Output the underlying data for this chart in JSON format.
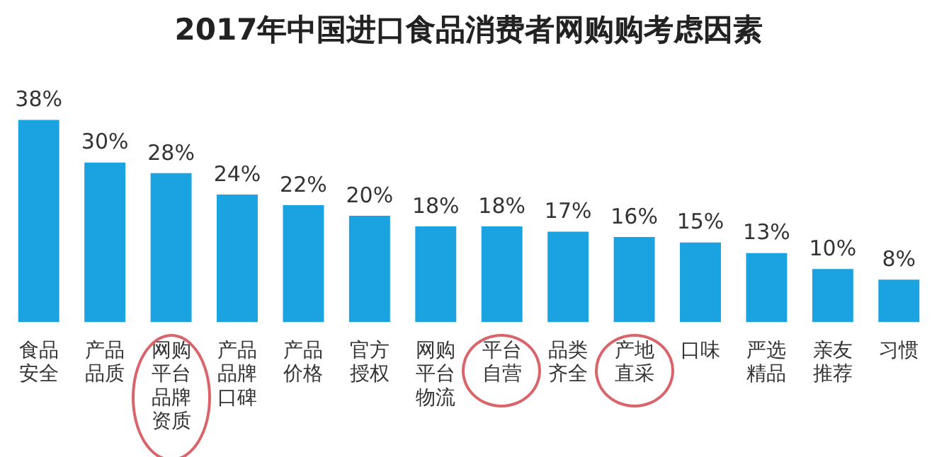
{
  "chart_data": {
    "type": "bar",
    "title": "2017年中国进口食品消费者网购购考虑因素",
    "categories": [
      "食品安全",
      "产品品质",
      "网购平台品牌资质",
      "产品品牌口碑",
      "产品价格",
      "官方授权",
      "网购平台物流",
      "平台自营",
      "品类齐全",
      "产地直采",
      "口味",
      "严选精品",
      "亲友推荐",
      "习惯"
    ],
    "values": [
      38,
      30,
      28,
      24,
      22,
      20,
      18,
      18,
      17,
      16,
      15,
      13,
      10,
      8
    ],
    "value_labels": [
      "38%",
      "30%",
      "28%",
      "24%",
      "22%",
      "20%",
      "18%",
      "18%",
      "17%",
      "16%",
      "15%",
      "13%",
      "10%",
      "8%"
    ],
    "color": "#1aa3e0",
    "grid": false,
    "legend": false
  }
}
